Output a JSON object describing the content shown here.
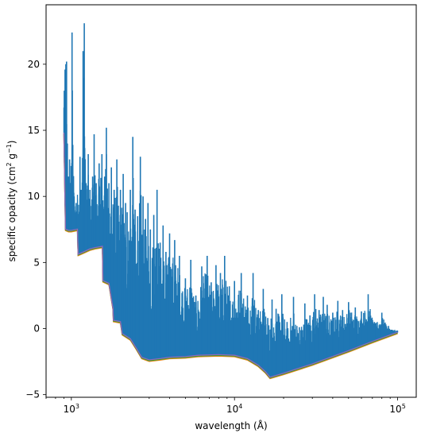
{
  "chart_data": {
    "type": "line",
    "title": "",
    "xlabel": "wavelength (Å)",
    "ylabel": "specific opacity (cm² g⁻¹)",
    "ylabel_parts": {
      "prefix": "specific opacity (cm",
      "sup1": "2",
      "mid": " g",
      "sup2": "−1",
      "suffix": ")"
    },
    "x_scale": "log",
    "xlim": [
      700,
      130000
    ],
    "ylim": [
      -5.2,
      24.5
    ],
    "x_ticks": [
      {
        "value": 1000,
        "base": "10",
        "exp": "3"
      },
      {
        "value": 10000,
        "base": "10",
        "exp": "4"
      },
      {
        "value": 100000,
        "base": "10",
        "exp": "5"
      }
    ],
    "y_ticks": [
      {
        "value": -5,
        "label": "−5"
      },
      {
        "value": 0,
        "label": "0"
      },
      {
        "value": 5,
        "label": "5"
      },
      {
        "value": 10,
        "label": "10"
      },
      {
        "value": 15,
        "label": "15"
      },
      {
        "value": 20,
        "label": "20"
      }
    ],
    "grid": false,
    "legend": "none",
    "colors": {
      "main": "#1f77b4",
      "lower_orange": "#ff7f0e",
      "lower_green": "#2ca02c",
      "lower_purple": "#9467bd",
      "halo": "#e0f7fa"
    },
    "series": [
      {
        "role": "lower-envelope",
        "x": [
          900,
          920,
          960,
          1000,
          1090,
          1100,
          1200,
          1300,
          1400,
          1550,
          1560,
          1700,
          1800,
          1810,
          2000,
          2050,
          2300,
          2500,
          2700,
          3000,
          3500,
          4000,
          5000,
          6000,
          8000,
          10000,
          12000,
          14000,
          15500,
          16500,
          20000,
          30000,
          50000,
          70000,
          100000
        ],
        "y": [
          14.8,
          7.5,
          7.4,
          7.4,
          7.5,
          5.6,
          5.8,
          6.0,
          6.1,
          6.2,
          3.6,
          3.4,
          1.5,
          0.6,
          0.5,
          -0.4,
          -0.8,
          -1.5,
          -2.2,
          -2.4,
          -2.3,
          -2.2,
          -2.15,
          -2.05,
          -2.0,
          -2.05,
          -2.3,
          -2.8,
          -3.3,
          -3.7,
          -3.4,
          -2.7,
          -1.7,
          -1.0,
          -0.3
        ]
      },
      {
        "role": "line-peaks",
        "x": [
          905,
          915,
          925,
          935,
          945,
          960,
          975,
          990,
          1010,
          1040,
          1070,
          1130,
          1150,
          1180,
          1200,
          1230,
          1270,
          1300,
          1350,
          1380,
          1420,
          1480,
          1540,
          1600,
          1640,
          1700,
          1760,
          1830,
          1900,
          2000,
          2080,
          2150,
          2200,
          2300,
          2380,
          2460,
          2550,
          2650,
          2750,
          2850,
          2950,
          3050,
          3200,
          3350,
          3500,
          3650,
          3800,
          4000,
          4300,
          4600,
          5000,
          5400,
          5800,
          6300,
          6800,
          7200,
          7700,
          8200,
          8700,
          9300,
          10000,
          11000,
          12000,
          13000,
          14000,
          15000,
          16000,
          17000,
          18000,
          19500,
          21000,
          23000,
          25000,
          27000,
          29000,
          31000,
          33000,
          35000,
          37000,
          40000,
          43000,
          46000,
          50000,
          55000,
          60000,
          66000,
          72000,
          80000,
          88000,
          96000
        ],
        "y": [
          18,
          19.6,
          20,
          20.2,
          14,
          11.5,
          12.8,
          11,
          22.4,
          10,
          9.5,
          13,
          10.5,
          21,
          23.1,
          11,
          13.2,
          10.5,
          11.5,
          14.7,
          11,
          12.5,
          13.2,
          11.5,
          15.2,
          11,
          12.2,
          10.5,
          12.8,
          10.5,
          11.7,
          9.5,
          8.8,
          10.5,
          14.5,
          9,
          8.5,
          13,
          10,
          8.3,
          9.5,
          7.5,
          8.6,
          10.5,
          6.5,
          7.8,
          5.8,
          7.2,
          6.7,
          5.5,
          3.8,
          5.2,
          2.5,
          4.7,
          5.5,
          3.5,
          4.8,
          4.2,
          5.5,
          3.2,
          3.6,
          4.2,
          2.5,
          4.2,
          1.4,
          3.0,
          0.8,
          2.2,
          1.5,
          2.6,
          0.5,
          2.4,
          0.1,
          1.9,
          1.0,
          2.6,
          1.4,
          2.4,
          1.8,
          1.2,
          2.1,
          1.4,
          2.0,
          1.6,
          1.3,
          2.6,
          0.5,
          1.2,
          0.2,
          -0.1
        ]
      }
    ]
  }
}
